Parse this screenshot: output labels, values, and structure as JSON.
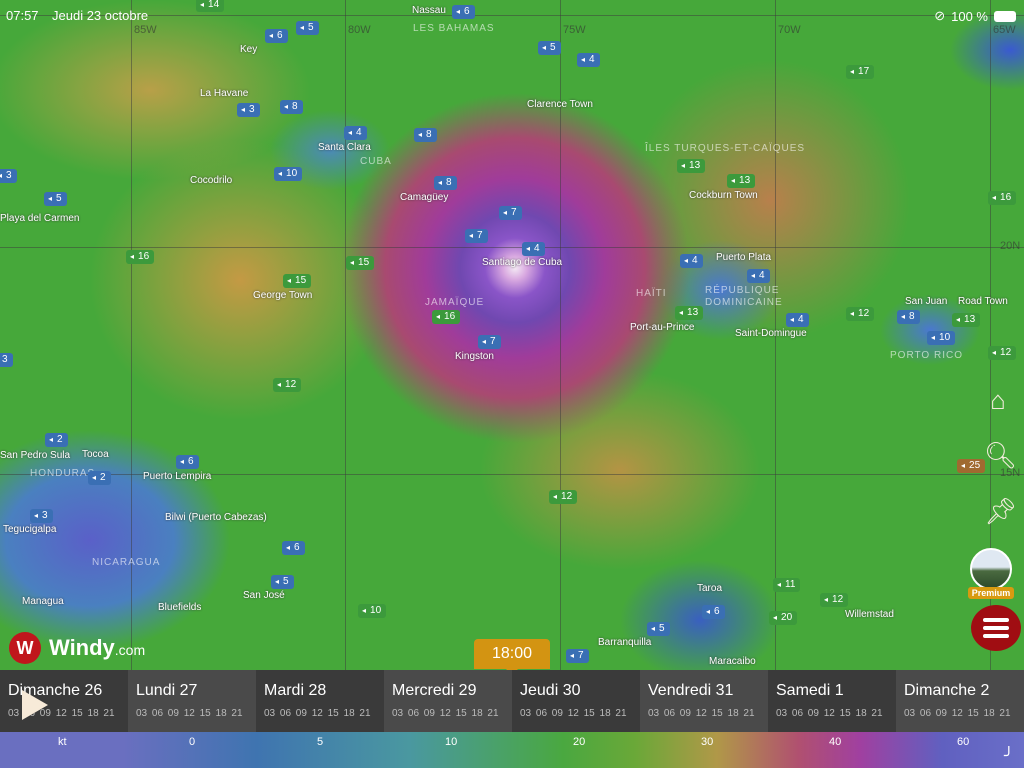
{
  "status_bar": {
    "time": "07:57",
    "date": "Jeudi 23 octobre",
    "battery": "100 %"
  },
  "grid": {
    "lon": [
      "85W",
      "80W",
      "75W",
      "70W",
      "65W"
    ],
    "lat": [
      "20N",
      "15N"
    ]
  },
  "places": [
    "Key",
    "Nassau",
    "Clarence Town",
    "La Havane",
    "Santa Clara",
    "Cocodrilo",
    "Camagüey",
    "Santiago de Cuba",
    "Playa del Carmen",
    "George Town",
    "Kingston",
    "Cockburn Town",
    "Puerto Plata",
    "Port-au-Prince",
    "Saint-Domingue",
    "San Juan",
    "Road Town",
    "San Pedro Sula",
    "Tocoa",
    "Puerto Lempira",
    "Tegucigalpa",
    "Bilwi (Puerto Cabezas)",
    "Managua",
    "Bluefields",
    "San José",
    "Taroa",
    "Willemstad",
    "Maracaibo",
    "Barranquilla"
  ],
  "countries": [
    "LES BAHAMAS",
    "CUBA",
    "JAMAÏQUE",
    "ÎLES TURQUES-ET-CAÏQUES",
    "HAÏTI",
    "RÉPUBLIQUE DOMINICAINE",
    "PORTO RICO",
    "HONDURAS",
    "NICARAGUA"
  ],
  "wind_badges": [
    "14",
    "5",
    "6",
    "6",
    "5",
    "4",
    "17",
    "3",
    "8",
    "4",
    "8",
    "10",
    "8",
    "13",
    "13",
    "16",
    "7",
    "7",
    "4",
    "16",
    "15",
    "15",
    "4",
    "4",
    "13",
    "4",
    "12",
    "8",
    "13",
    "10",
    "12",
    "16",
    "7",
    "12",
    "2",
    "2",
    "6",
    "3",
    "12",
    "6",
    "5",
    "10",
    "6",
    "5",
    "11",
    "12",
    "20",
    "7",
    "25",
    "5",
    "3",
    "3"
  ],
  "badge_colors": {
    "blue": "#3a6fb4",
    "green": "#3c9a3c",
    "brown": "#a06a30"
  },
  "logo": {
    "text": "Windy",
    "suffix": ".com"
  },
  "controls": {
    "home": "home-icon",
    "search": "search-icon",
    "pin": "pin-icon",
    "premium": "Premium",
    "menu": "menu-icon"
  },
  "timeline": {
    "selected_time": "18:00",
    "days": [
      {
        "label": "Dimanche 26",
        "hours": "03 06 09 12 15 18 21"
      },
      {
        "label": "Lundi 27",
        "hours": "03 06 09 12 15 18 21"
      },
      {
        "label": "Mardi 28",
        "hours": "03 06 09 12 15 18 21"
      },
      {
        "label": "Mercredi 29",
        "hours": "03 06 09 12 15 18 21"
      },
      {
        "label": "Jeudi 30",
        "hours": "03 06 09 12 15 18 21"
      },
      {
        "label": "Vendredi 31",
        "hours": "03 06 09 12 15 18 21"
      },
      {
        "label": "Samedi 1",
        "hours": "03 06 09 12 15 18 21"
      },
      {
        "label": "Dimanche 2",
        "hours": "03 06 09 12 15 18 21"
      }
    ]
  },
  "legend": {
    "unit": "kt",
    "ticks": [
      "0",
      "5",
      "10",
      "20",
      "30",
      "40",
      "60"
    ]
  }
}
